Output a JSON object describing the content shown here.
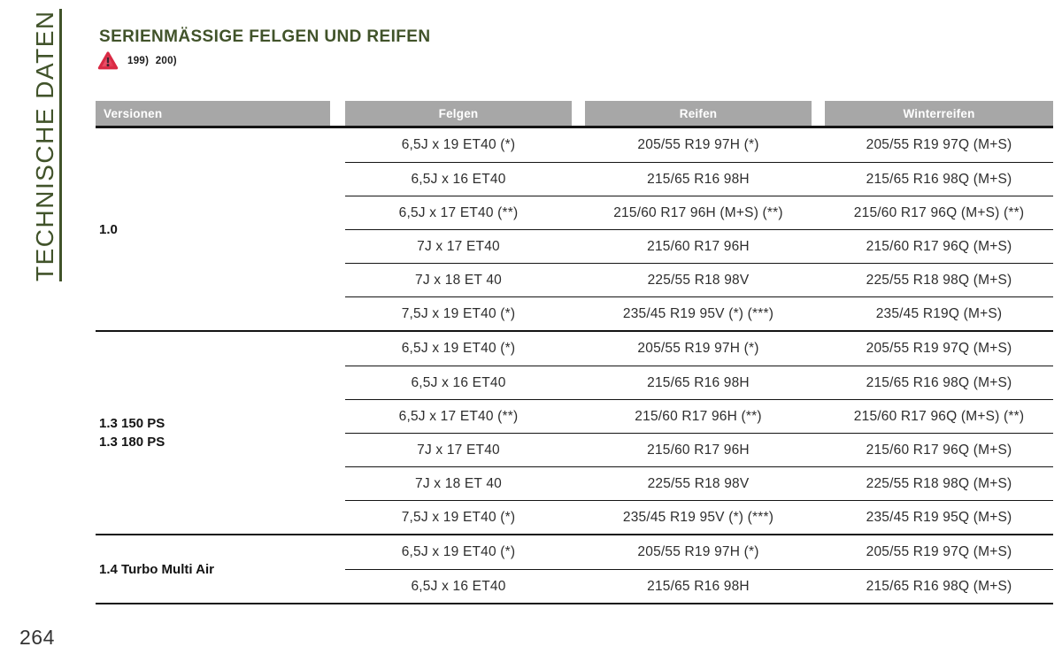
{
  "page": {
    "sidebar_label": "TECHNISCHE DATEN",
    "title": "SERIENMÄSSIGE FELGEN UND REIFEN",
    "footnote_refs": "199)  200)",
    "page_number": "264",
    "colors": {
      "accent_green": "#41532a",
      "header_gray": "#a7a7a7",
      "rule_black": "#141414",
      "warning_red": "#e8465a"
    },
    "icons": {
      "warning": "warning-triangle-icon"
    }
  },
  "table": {
    "headers": [
      "Versionen",
      "Felgen",
      "Reifen",
      "Winterreifen"
    ],
    "groups": [
      {
        "version_lines": [
          "1.0"
        ],
        "rows": [
          {
            "felgen": "6,5J x 19 ET40 (*)",
            "reifen": "205/55 R19 97H (*)",
            "winterreifen": "205/55 R19 97Q (M+S)"
          },
          {
            "felgen": "6,5J x 16 ET40",
            "reifen": "215/65 R16 98H",
            "winterreifen": "215/65 R16 98Q (M+S)"
          },
          {
            "felgen": "6,5J x 17 ET40 (**)",
            "reifen": "215/60 R17 96H (M+S) (**)",
            "winterreifen": "215/60 R17 96Q (M+S) (**)"
          },
          {
            "felgen": "7J x 17 ET40",
            "reifen": "215/60 R17 96H",
            "winterreifen": "215/60 R17 96Q (M+S)"
          },
          {
            "felgen": "7J x 18 ET 40",
            "reifen": "225/55 R18 98V",
            "winterreifen": "225/55 R18 98Q (M+S)"
          },
          {
            "felgen": "7,5J x 19 ET40 (*)",
            "reifen": "235/45 R19 95V (*) (***)",
            "winterreifen": "235/45 R19Q (M+S)"
          }
        ]
      },
      {
        "version_lines": [
          "1.3 150 PS",
          "1.3 180 PS"
        ],
        "rows": [
          {
            "felgen": "6,5J x 19 ET40 (*)",
            "reifen": "205/55 R19 97H (*)",
            "winterreifen": "205/55 R19 97Q (M+S)"
          },
          {
            "felgen": "6,5J x 16 ET40",
            "reifen": "215/65 R16 98H",
            "winterreifen": "215/65 R16 98Q (M+S)"
          },
          {
            "felgen": "6,5J x 17 ET40 (**)",
            "reifen": "215/60 R17 96H (**)",
            "winterreifen": "215/60 R17 96Q (M+S) (**)"
          },
          {
            "felgen": "7J x 17 ET40",
            "reifen": "215/60 R17 96H",
            "winterreifen": "215/60 R17 96Q (M+S)"
          },
          {
            "felgen": "7J x 18 ET 40",
            "reifen": "225/55 R18 98V",
            "winterreifen": "225/55 R18 98Q (M+S)"
          },
          {
            "felgen": "7,5J x 19 ET40 (*)",
            "reifen": "235/45 R19 95V (*) (***)",
            "winterreifen": "235/45 R19 95Q (M+S)"
          }
        ]
      },
      {
        "version_lines": [
          "1.4 Turbo Multi Air"
        ],
        "rows": [
          {
            "felgen": "6,5J x 19 ET40 (*)",
            "reifen": "205/55 R19 97H (*)",
            "winterreifen": "205/55 R19 97Q (M+S)"
          },
          {
            "felgen": "6,5J x 16 ET40",
            "reifen": "215/65 R16 98H",
            "winterreifen": "215/65 R16 98Q (M+S)"
          }
        ]
      }
    ]
  }
}
